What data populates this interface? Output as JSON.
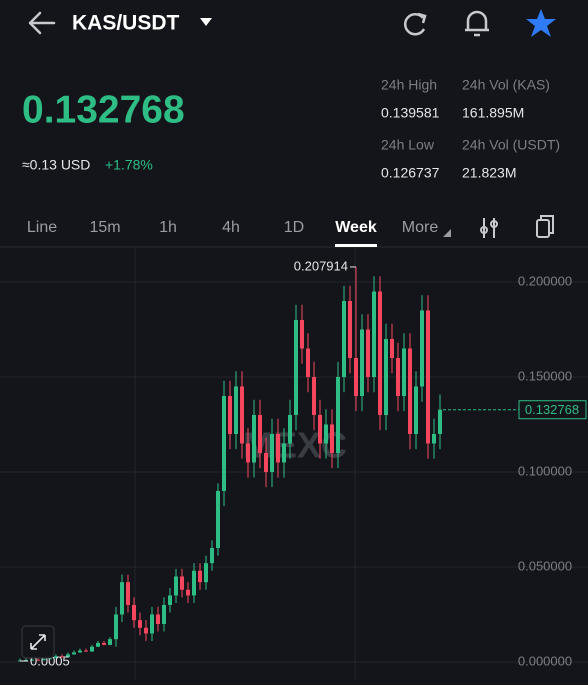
{
  "header": {
    "pair": "KAS/USDT"
  },
  "ticker": {
    "price": "0.132768",
    "usd": "≈0.13 USD",
    "change": "+1.78%",
    "stats": [
      {
        "label": "24h High",
        "value": "0.139581"
      },
      {
        "label": "24h Vol (KAS)",
        "value": "161.895M"
      },
      {
        "label": "24h Low",
        "value": "0.126737"
      },
      {
        "label": "24h Vol (USDT)",
        "value": "21.823M"
      }
    ]
  },
  "tabs": [
    "Line",
    "15m",
    "1h",
    "4h",
    "1D",
    "Week",
    "More"
  ],
  "active_tab": "Week",
  "chart_data": {
    "type": "candlestick",
    "watermark": "MEXC",
    "open": [
      0.0006,
      0.0008,
      0.001,
      0.0012,
      0.001,
      0.0015,
      0.002,
      0.003,
      0.0025,
      0.004,
      0.005,
      0.006,
      0.0055,
      0.008,
      0.01,
      0.009,
      0.012,
      0.025,
      0.042,
      0.03,
      0.022,
      0.018,
      0.015,
      0.025,
      0.02,
      0.03,
      0.035,
      0.045,
      0.038,
      0.035,
      0.048,
      0.042,
      0.052,
      0.06,
      0.09,
      0.14,
      0.12,
      0.145,
      0.115,
      0.105,
      0.13,
      0.11,
      0.1,
      0.12,
      0.105,
      0.115,
      0.13,
      0.18,
      0.165,
      0.15,
      0.13,
      0.115,
      0.125,
      0.11,
      0.15,
      0.19,
      0.16,
      0.14,
      0.175,
      0.15,
      0.195,
      0.13,
      0.17,
      0.16,
      0.14,
      0.165,
      0.12,
      0.145,
      0.185,
      0.115,
      0.12
    ],
    "high": [
      0.0018,
      0.002,
      0.0022,
      0.0022,
      0.0025,
      0.003,
      0.004,
      0.004,
      0.005,
      0.006,
      0.007,
      0.007,
      0.009,
      0.011,
      0.011,
      0.013,
      0.029,
      0.046,
      0.046,
      0.034,
      0.026,
      0.022,
      0.029,
      0.029,
      0.034,
      0.039,
      0.049,
      0.049,
      0.042,
      0.052,
      0.052,
      0.056,
      0.064,
      0.094,
      0.148,
      0.148,
      0.153,
      0.153,
      0.123,
      0.138,
      0.138,
      0.118,
      0.128,
      0.128,
      0.123,
      0.138,
      0.188,
      0.188,
      0.173,
      0.158,
      0.138,
      0.133,
      0.133,
      0.158,
      0.198,
      0.198,
      0.207914,
      0.183,
      0.183,
      0.203,
      0.203,
      0.178,
      0.178,
      0.168,
      0.173,
      0.173,
      0.153,
      0.193,
      0.193,
      0.128,
      0.1408
    ],
    "low": [
      0.0005,
      0.0006,
      0.0008,
      0.0008,
      0.0008,
      0.0013,
      0.0018,
      0.0023,
      0.0023,
      0.0038,
      0.0048,
      0.0053,
      0.0053,
      0.0078,
      0.0088,
      0.0088,
      0.008,
      0.021,
      0.026,
      0.018,
      0.014,
      0.011,
      0.011,
      0.016,
      0.016,
      0.026,
      0.031,
      0.034,
      0.031,
      0.031,
      0.038,
      0.038,
      0.048,
      0.056,
      0.082,
      0.112,
      0.112,
      0.107,
      0.097,
      0.097,
      0.102,
      0.092,
      0.092,
      0.097,
      0.097,
      0.107,
      0.122,
      0.157,
      0.142,
      0.122,
      0.107,
      0.107,
      0.102,
      0.102,
      0.142,
      0.152,
      0.132,
      0.132,
      0.142,
      0.142,
      0.122,
      0.122,
      0.152,
      0.132,
      0.132,
      0.112,
      0.112,
      0.137,
      0.107,
      0.107,
      0.112
    ],
    "close": [
      0.0008,
      0.001,
      0.0012,
      0.001,
      0.0015,
      0.002,
      0.003,
      0.0025,
      0.004,
      0.005,
      0.006,
      0.0055,
      0.008,
      0.01,
      0.009,
      0.012,
      0.025,
      0.042,
      0.03,
      0.022,
      0.018,
      0.015,
      0.025,
      0.02,
      0.03,
      0.035,
      0.045,
      0.038,
      0.035,
      0.048,
      0.042,
      0.052,
      0.06,
      0.09,
      0.14,
      0.12,
      0.145,
      0.115,
      0.105,
      0.13,
      0.11,
      0.1,
      0.12,
      0.105,
      0.115,
      0.13,
      0.18,
      0.165,
      0.15,
      0.13,
      0.115,
      0.125,
      0.11,
      0.15,
      0.19,
      0.16,
      0.14,
      0.175,
      0.15,
      0.195,
      0.13,
      0.17,
      0.16,
      0.14,
      0.165,
      0.12,
      0.145,
      0.185,
      0.115,
      0.12,
      0.132768
    ],
    "up_color": "#2ebd85",
    "down_color": "#f6465d",
    "ylim": [
      -0.0095,
      0.2179
    ],
    "yticks": [
      {
        "value": 0,
        "label": "0.000000"
      },
      {
        "value": 0.05,
        "label": "0.050000"
      },
      {
        "value": 0.1,
        "label": "0.100000"
      },
      {
        "value": 0.15,
        "label": "0.150000"
      },
      {
        "value": 0.2,
        "label": "0.200000"
      }
    ],
    "grid": true
  }
}
